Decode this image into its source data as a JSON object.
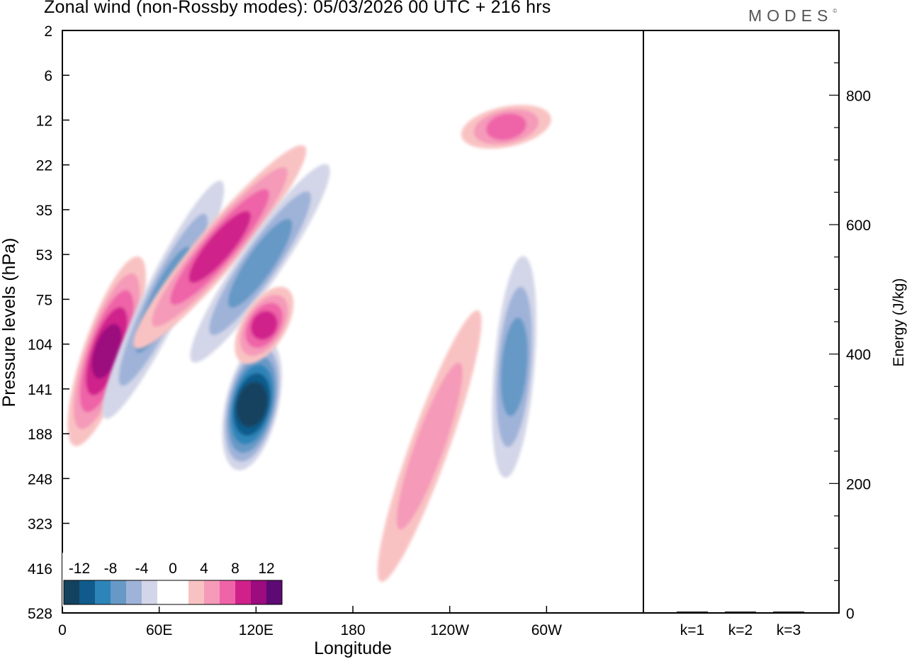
{
  "title": "Zonal wind (non-Rossby modes):  05/03/2026  00 UTC  + 216 hrs",
  "logo": "MODES",
  "logo_mark": "©",
  "chart_data": [
    {
      "type": "heatmap",
      "title": "Zonal wind (non-Rossby modes)",
      "xlabel": "Longitude",
      "ylabel": "Pressure levels (hPa)",
      "x_ticks": [
        "0",
        "60E",
        "120E",
        "180",
        "120W",
        "60W"
      ],
      "y_ticks": [
        "2",
        "6",
        "12",
        "22",
        "35",
        "53",
        "75",
        "104",
        "141",
        "188",
        "248",
        "323",
        "416",
        "528"
      ],
      "colorbar": {
        "labels": [
          "-12",
          "-8",
          "-4",
          "0",
          "4",
          "8",
          "12"
        ],
        "colors": [
          "#13425f",
          "#105b8c",
          "#2d84b8",
          "#6699c6",
          "#9fb3d9",
          "#d3d6e8",
          "#ffffff",
          "#ffffff",
          "#f9c2c2",
          "#f59ab9",
          "#ef64a8",
          "#d0218b",
          "#9c0c7e",
          "#5e0a74"
        ]
      },
      "features": [
        {
          "lon0": 10,
          "p0": 188,
          "lon1": 45,
          "p1": 60,
          "sign": "positive",
          "peak": 10
        },
        {
          "lon0": 30,
          "p0": 160,
          "lon1": 95,
          "p1": 30,
          "sign": "negative",
          "peak": -6
        },
        {
          "lon0": 50,
          "p0": 100,
          "lon1": 145,
          "p1": 20,
          "sign": "positive",
          "peak": 8
        },
        {
          "lon0": 85,
          "p0": 110,
          "lon1": 160,
          "p1": 25,
          "sign": "negative",
          "peak": -7
        },
        {
          "lon0": 110,
          "p0": 220,
          "lon1": 125,
          "p1": 110,
          "sign": "negative",
          "peak": -14
        },
        {
          "lon0": 115,
          "p0": 110,
          "lon1": 135,
          "p1": 75,
          "sign": "positive",
          "peak": 8
        },
        {
          "lon0": 200,
          "p0": 420,
          "lon1": 255,
          "p1": 90,
          "sign": "positive",
          "peak": 5
        },
        {
          "lon0": 275,
          "p0": 230,
          "lon1": 285,
          "p1": 60,
          "sign": "negative",
          "peak": -6
        },
        {
          "lon0": 255,
          "p0": 15,
          "lon1": 295,
          "p1": 12,
          "sign": "positive",
          "peak": 6
        }
      ]
    },
    {
      "type": "bar",
      "categories": [
        "k=1",
        "k=2",
        "k=3"
      ],
      "values": [
        1,
        1,
        1
      ],
      "ylabel": "Energy (J/kg)",
      "ylim": [
        0,
        900
      ],
      "y_ticks": [
        0,
        200,
        400,
        600,
        800
      ]
    }
  ]
}
